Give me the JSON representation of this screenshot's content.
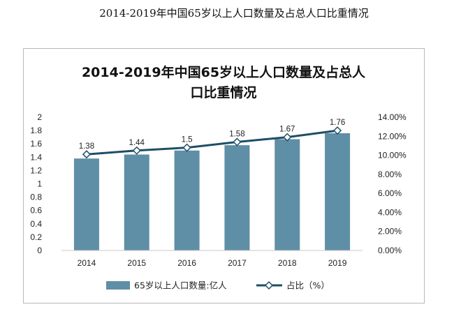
{
  "page": {
    "title": "2014-2019年中国65岁以上人口数量及占总人口比重情况"
  },
  "colors": {
    "bar": "#5e8fa6",
    "line": "#1f4e66",
    "marker_fill": "#ffffff"
  },
  "chart_data": {
    "type": "bar+line",
    "title_lines": [
      "2014-2019年中国65岁以上人口数量及占总人",
      "口比重情况"
    ],
    "categories": [
      "2014",
      "2015",
      "2016",
      "2017",
      "2018",
      "2019"
    ],
    "series": [
      {
        "name": "65岁以上人口数量:亿人",
        "type": "bar",
        "axis": "left",
        "values": [
          1.38,
          1.44,
          1.5,
          1.58,
          1.67,
          1.76
        ]
      },
      {
        "name": "占比（%）",
        "type": "line",
        "axis": "right",
        "values": [
          10.1,
          10.5,
          10.8,
          11.4,
          11.9,
          12.6
        ]
      }
    ],
    "data_labels": [
      "1.38",
      "1.44",
      "1.5",
      "1.58",
      "1.67",
      "1.76"
    ],
    "y_left": {
      "min": 0,
      "max": 2,
      "ticks": [
        "0",
        "0.2",
        "0.4",
        "0.6",
        "0.8",
        "1",
        "1.2",
        "1.4",
        "1.6",
        "1.8",
        "2"
      ]
    },
    "y_right": {
      "min": 0,
      "max": 14,
      "ticks": [
        "0.00%",
        "2.00%",
        "4.00%",
        "6.00%",
        "8.00%",
        "10.00%",
        "12.00%",
        "14.00%"
      ]
    },
    "grid": false,
    "legend_position": "bottom"
  }
}
